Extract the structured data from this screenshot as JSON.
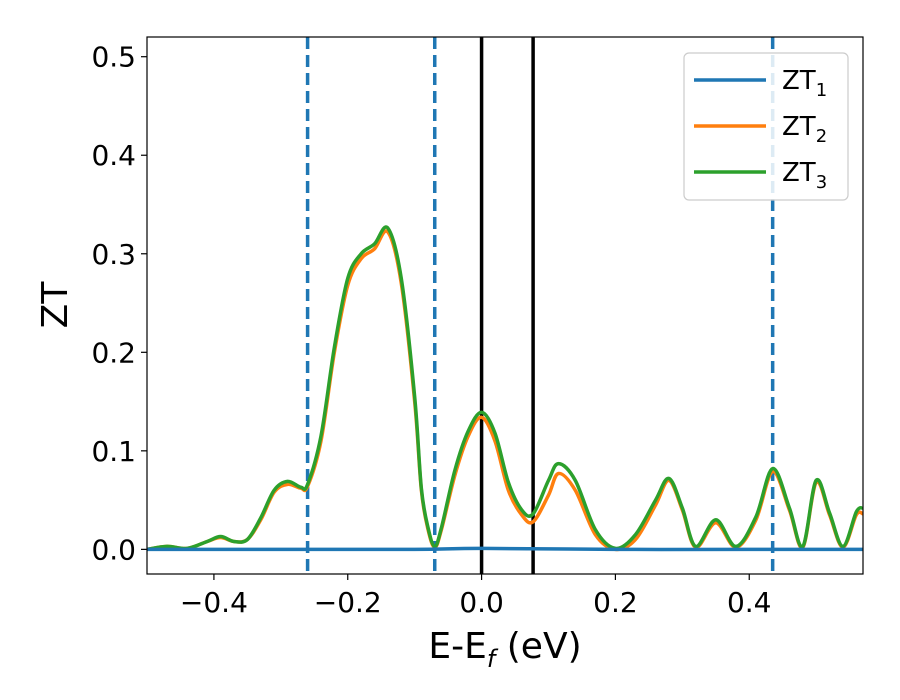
{
  "chart_data": {
    "type": "line",
    "xlabel": {
      "main": "E-E",
      "sub": "f",
      "suffix": " (eV)"
    },
    "ylabel": "ZT",
    "xlim": [
      -0.5,
      0.57
    ],
    "ylim": [
      -0.025,
      0.52
    ],
    "xticks": [
      -0.4,
      -0.2,
      0.0,
      0.2,
      0.4
    ],
    "xtick_labels": [
      "−0.4",
      "−0.2",
      "0.0",
      "0.2",
      "0.4"
    ],
    "yticks": [
      0.0,
      0.1,
      0.2,
      0.3,
      0.4,
      0.5
    ],
    "ytick_labels": [
      "0.0",
      "0.1",
      "0.2",
      "0.3",
      "0.4",
      "0.5"
    ],
    "grid": false,
    "legend_position": "top-right",
    "vlines_dashed": [
      -0.26,
      -0.07,
      0.435
    ],
    "vlines_solid": [
      0.0,
      0.077
    ],
    "series": [
      {
        "name": "ZT",
        "name_sub": "1",
        "color": "#1f77b4",
        "x": [
          -0.5,
          -0.3,
          -0.1,
          0.0,
          0.2,
          0.4,
          0.57
        ],
        "y": [
          0.0,
          0.0,
          0.0,
          0.001,
          0.0,
          0.0,
          0.0
        ]
      },
      {
        "name": "ZT",
        "name_sub": "2",
        "color": "#ff7f0e",
        "x": [
          -0.5,
          -0.47,
          -0.44,
          -0.41,
          -0.39,
          -0.37,
          -0.35,
          -0.33,
          -0.31,
          -0.29,
          -0.27,
          -0.26,
          -0.24,
          -0.22,
          -0.2,
          -0.18,
          -0.16,
          -0.14,
          -0.12,
          -0.1,
          -0.09,
          -0.08,
          -0.07,
          -0.06,
          -0.04,
          -0.02,
          0.0,
          0.02,
          0.04,
          0.06,
          0.077,
          0.1,
          0.115,
          0.14,
          0.17,
          0.2,
          0.23,
          0.26,
          0.28,
          0.3,
          0.32,
          0.35,
          0.38,
          0.41,
          0.435,
          0.46,
          0.48,
          0.5,
          0.52,
          0.54,
          0.56,
          0.57
        ],
        "y": [
          0.0,
          0.003,
          0.001,
          0.008,
          0.012,
          0.008,
          0.01,
          0.03,
          0.058,
          0.066,
          0.062,
          0.064,
          0.11,
          0.2,
          0.268,
          0.295,
          0.305,
          0.322,
          0.27,
          0.15,
          0.06,
          0.02,
          0.002,
          0.02,
          0.075,
          0.115,
          0.134,
          0.11,
          0.06,
          0.035,
          0.028,
          0.055,
          0.077,
          0.06,
          0.015,
          0.0,
          0.01,
          0.045,
          0.07,
          0.04,
          0.002,
          0.027,
          0.002,
          0.03,
          0.079,
          0.04,
          0.002,
          0.068,
          0.035,
          0.002,
          0.035,
          0.036
        ]
      },
      {
        "name": "ZT",
        "name_sub": "3",
        "color": "#2ca02c",
        "x": [
          -0.5,
          -0.47,
          -0.44,
          -0.41,
          -0.39,
          -0.37,
          -0.35,
          -0.33,
          -0.31,
          -0.29,
          -0.27,
          -0.26,
          -0.24,
          -0.22,
          -0.2,
          -0.18,
          -0.16,
          -0.14,
          -0.12,
          -0.1,
          -0.09,
          -0.08,
          -0.07,
          -0.06,
          -0.04,
          -0.02,
          0.0,
          0.02,
          0.04,
          0.06,
          0.077,
          0.1,
          0.115,
          0.14,
          0.17,
          0.2,
          0.23,
          0.26,
          0.28,
          0.3,
          0.32,
          0.35,
          0.38,
          0.41,
          0.435,
          0.46,
          0.48,
          0.5,
          0.52,
          0.54,
          0.56,
          0.57
        ],
        "y": [
          0.0,
          0.003,
          0.001,
          0.008,
          0.013,
          0.008,
          0.01,
          0.032,
          0.06,
          0.069,
          0.063,
          0.066,
          0.115,
          0.205,
          0.275,
          0.3,
          0.31,
          0.326,
          0.275,
          0.155,
          0.062,
          0.022,
          0.003,
          0.022,
          0.08,
          0.12,
          0.139,
          0.118,
          0.068,
          0.04,
          0.036,
          0.07,
          0.087,
          0.07,
          0.02,
          0.001,
          0.015,
          0.05,
          0.072,
          0.042,
          0.003,
          0.03,
          0.003,
          0.033,
          0.082,
          0.042,
          0.003,
          0.07,
          0.037,
          0.003,
          0.038,
          0.042
        ]
      }
    ]
  }
}
